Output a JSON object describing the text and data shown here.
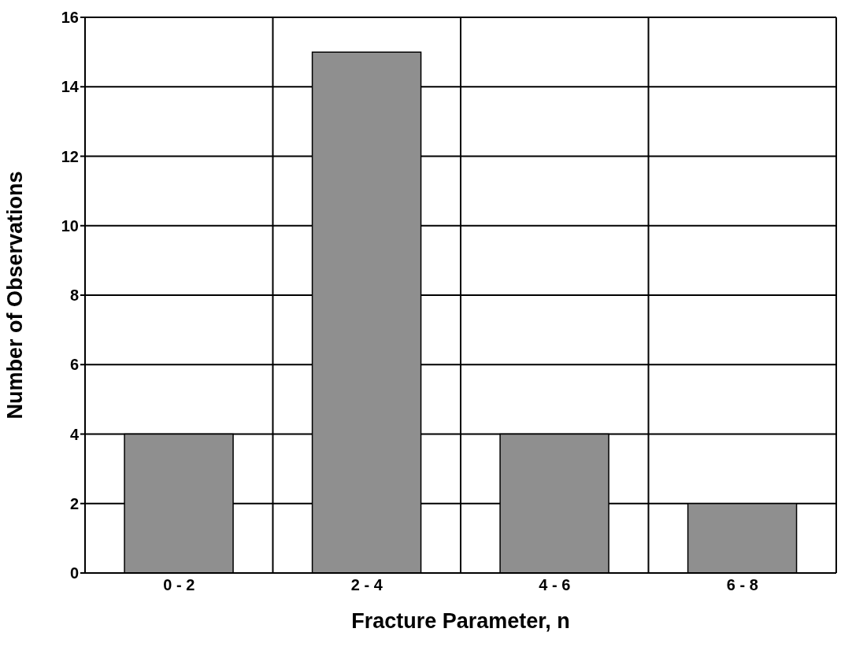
{
  "chart_data": {
    "type": "bar",
    "xlabel": "Fracture Parameter, n",
    "ylabel": "Number of Observations",
    "categories": [
      "0 - 2",
      "2 - 4",
      "4 - 6",
      "6 - 8"
    ],
    "values": [
      4,
      15,
      4,
      2
    ],
    "color": "#8f8f8f",
    "ylim": [
      0,
      16
    ],
    "yticks": [
      0,
      2,
      4,
      6,
      8,
      10,
      12,
      14,
      16
    ],
    "grid": true
  }
}
